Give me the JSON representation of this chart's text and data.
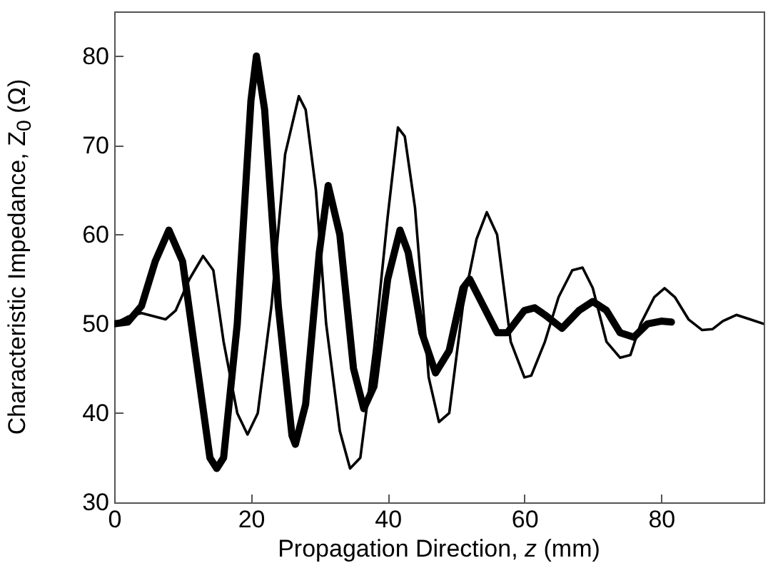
{
  "chart_data": {
    "type": "line",
    "xlabel": "Propagation Direction, z (mm)",
    "ylabel": "Characteristic Impedance, Z$_{0}$ (Ω)",
    "xlim": [
      0,
      95
    ],
    "ylim": [
      30,
      85
    ],
    "xticks": [
      0,
      20,
      40,
      60,
      80
    ],
    "yticks": [
      30,
      40,
      50,
      60,
      70,
      80
    ],
    "grid": false,
    "marker": "none",
    "line_style": "solid",
    "series": [
      {
        "color": "#000000",
        "x": [
          0,
          2,
          4,
          6,
          8,
          10,
          12,
          14,
          15,
          16,
          18,
          20,
          20.8,
          22,
          24,
          26,
          26.5,
          28,
          30,
          31.3,
          33,
          35,
          36.5,
          38,
          40,
          41.8,
          43,
          45,
          47,
          49,
          51,
          52,
          54,
          56,
          57.5,
          60,
          61.5,
          63,
          65.5,
          68,
          70,
          72,
          74,
          76,
          78,
          80,
          81.5
        ],
        "values": [
          50,
          50.2,
          52,
          57,
          60.5,
          57,
          46,
          35,
          33.8,
          35,
          50,
          75,
          80,
          74,
          52,
          37.5,
          36.5,
          41,
          58,
          65.5,
          60,
          45,
          40.5,
          43,
          55,
          60.5,
          58,
          49,
          44.5,
          47,
          54,
          55,
          52,
          49,
          49,
          51.5,
          51.8,
          51,
          49.5,
          51.5,
          52.5,
          51.5,
          49,
          48.5,
          50,
          50.3,
          50.2
        ]
      },
      {
        "color": "#000000",
        "x": [
          0,
          2,
          4,
          6,
          7.5,
          9,
          11,
          13,
          14.5,
          16,
          18,
          19.5,
          21,
          23,
          25,
          27,
          28,
          29.5,
          31,
          33,
          34.5,
          36,
          38,
          40,
          41.5,
          42.5,
          44,
          46,
          47.5,
          49,
          51,
          53,
          54.5,
          56,
          58,
          60,
          61,
          63,
          65,
          67,
          68.5,
          70,
          72,
          74,
          75.5,
          77,
          79,
          80.5,
          82,
          84,
          86,
          87.5,
          89,
          91,
          93,
          95
        ],
        "values": [
          50,
          50.8,
          51.2,
          50.8,
          50.5,
          51.5,
          55,
          57.6,
          56,
          48,
          40,
          37.6,
          40,
          52,
          69,
          75.5,
          74,
          65,
          50,
          38,
          33.8,
          35,
          47,
          62,
          72,
          71,
          63,
          44,
          39,
          40,
          52,
          59.5,
          62.5,
          60,
          48,
          44,
          44.2,
          48,
          53,
          56,
          56.3,
          54,
          48,
          46.2,
          46.5,
          50,
          53,
          54,
          53,
          50.5,
          49.3,
          49.4,
          50.3,
          51,
          50.5,
          50
        ]
      }
    ]
  }
}
